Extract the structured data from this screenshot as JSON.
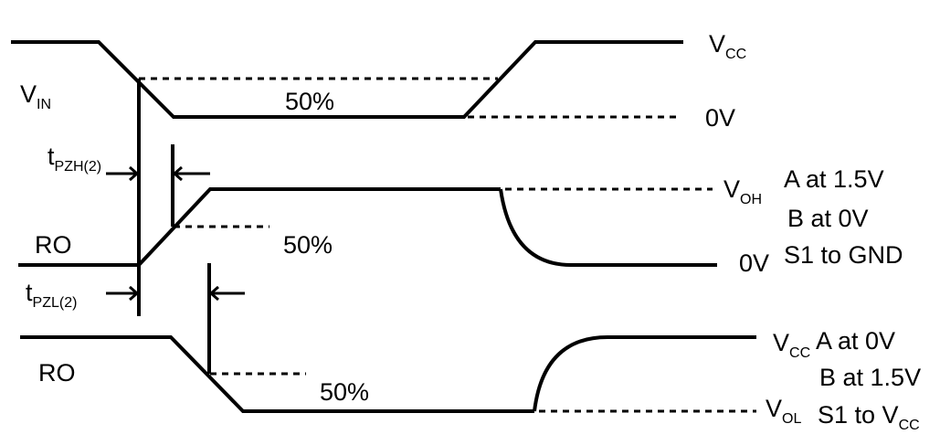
{
  "signals": {
    "vin": {
      "main": "V",
      "sub": "IN"
    },
    "ro_high": "RO",
    "ro_low": "RO"
  },
  "levels": {
    "vcc_top": {
      "main": "V",
      "sub": "CC"
    },
    "zero_v_vin": "0V",
    "voh": {
      "main": "V",
      "sub": "OH"
    },
    "zero_v_ro": "0V",
    "vcc_low": {
      "main": "V",
      "sub": "CC"
    },
    "vol": {
      "main": "V",
      "sub": "OL"
    }
  },
  "percent_labels": {
    "vin": "50%",
    "ro_high": "50%",
    "ro_low": "50%"
  },
  "timing": {
    "tpzh": {
      "main": "t",
      "sub": "PZH(2)"
    },
    "tpzl": {
      "main": "t",
      "sub": "PZL(2)"
    }
  },
  "conditions_high": {
    "line1": "A at 1.5V",
    "line2": "B at 0V",
    "line3": "S1 to GND"
  },
  "conditions_low": {
    "line1": "A at 0V",
    "line2": "B at 1.5V",
    "line3_main": "S1 to V",
    "line3_sub": "CC"
  }
}
